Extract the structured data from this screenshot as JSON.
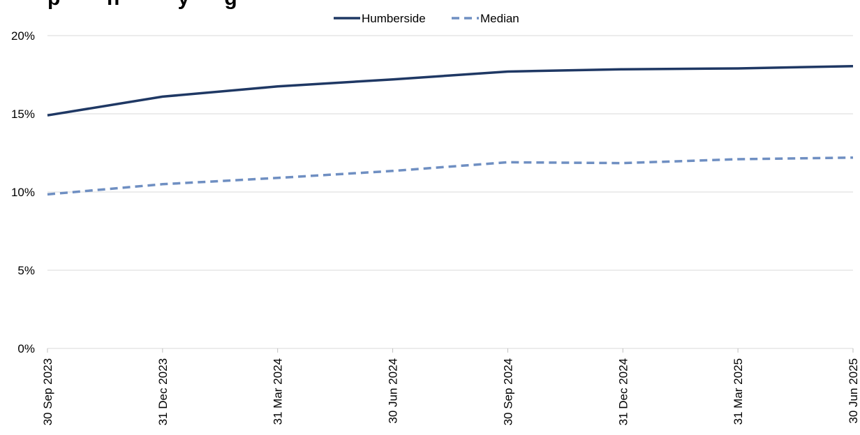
{
  "chart_data": {
    "type": "line",
    "title": "p        h          y      g",
    "categories": [
      "30 Sep 2023",
      "31 Dec 2023",
      "31 Mar 2024",
      "30 Jun 2024",
      "30 Sep 2024",
      "31 Dec 2024",
      "31 Mar 2025",
      "30 Jun 2025"
    ],
    "y_ticks": [
      "0%",
      "5%",
      "10%",
      "15%",
      "20%"
    ],
    "ylim": [
      0,
      20
    ],
    "grid": "horizontal",
    "legend_position": "top-center",
    "series": [
      {
        "name": "Humberside",
        "values": [
          14.9,
          16.1,
          16.75,
          17.2,
          17.7,
          17.85,
          17.9,
          18.05
        ],
        "color": "#1f3864",
        "style": "solid"
      },
      {
        "name": "Median",
        "values": [
          9.85,
          10.5,
          10.9,
          11.35,
          11.9,
          11.85,
          12.1,
          12.2
        ],
        "color": "#6f8fc2",
        "style": "dashed"
      }
    ]
  }
}
